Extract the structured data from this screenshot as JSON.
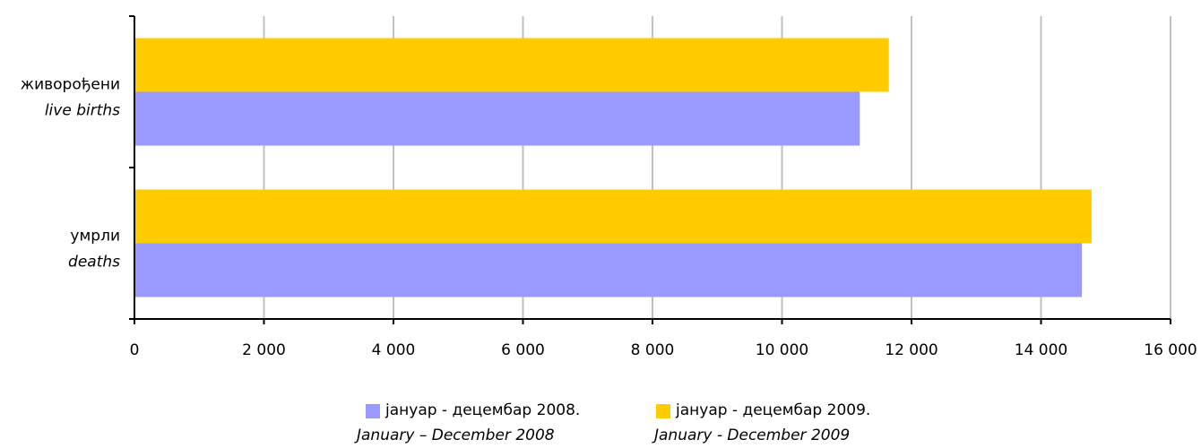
{
  "chart_data": {
    "type": "bar",
    "orientation": "horizontal",
    "categories": [
      {
        "label": "живорођени",
        "sublabel": "live births"
      },
      {
        "label": "умрли",
        "sublabel": "deaths"
      }
    ],
    "series": [
      {
        "name": "јануар - децембар 2008.",
        "name_en": "January – December 2008",
        "color": "#9999ff",
        "values": [
          11200,
          14630
        ]
      },
      {
        "name": "јануар - децембар 2009.",
        "name_en": "January  - December 2009",
        "color": "#ffcc00",
        "values": [
          11650,
          14780
        ]
      }
    ],
    "xlim": [
      0,
      16000
    ],
    "xticks": [
      0,
      2000,
      4000,
      6000,
      8000,
      10000,
      12000,
      14000,
      16000
    ],
    "xtick_labels": [
      "0",
      "2 000",
      "4 000",
      "6 000",
      "8 000",
      "10 000",
      "12 000",
      "14 000",
      "16 000"
    ],
    "grid": true,
    "legend_position": "bottom"
  }
}
